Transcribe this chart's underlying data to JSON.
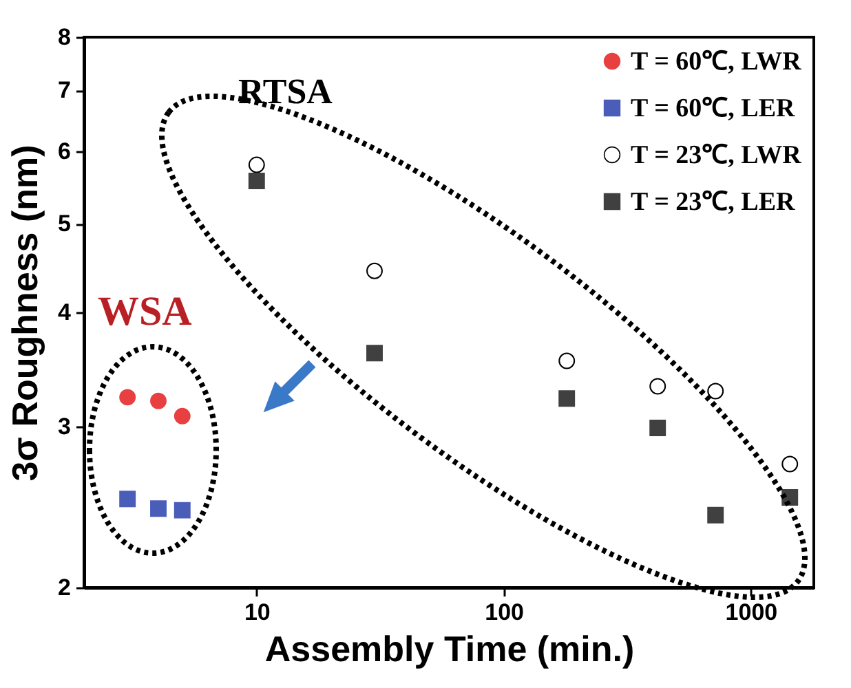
{
  "chart_data": {
    "type": "scatter",
    "xlabel": "Assembly Time (min.)",
    "ylabel": "3σ Roughness (nm)",
    "log": "xy",
    "xlim": [
      2,
      1800
    ],
    "xticks": [
      10,
      100,
      1000
    ],
    "ylim": [
      2,
      8
    ],
    "yticks": [
      2,
      3,
      4,
      5,
      6,
      7,
      8
    ],
    "grid": false,
    "legend": "top right",
    "series": [
      {
        "name": "T = 60℃, LWR",
        "color": "#e84040",
        "marker": "circle",
        "x": [
          3,
          4,
          5
        ],
        "values": [
          3.23,
          3.2,
          3.08
        ]
      },
      {
        "name": "T = 60℃, LER",
        "color": "#4a5db8",
        "marker": "square",
        "x": [
          3,
          4,
          5
        ],
        "values": [
          2.5,
          2.44,
          2.43
        ]
      },
      {
        "name": "T = 23℃, LWR",
        "color": "#ffffff",
        "marker": "circle",
        "x": [
          10,
          30,
          180,
          420,
          720,
          1440
        ],
        "values": [
          5.8,
          4.44,
          3.54,
          3.32,
          3.28,
          2.73
        ]
      },
      {
        "name": "T = 23℃, LER",
        "color": "#404040",
        "marker": "square",
        "x": [
          10,
          30,
          180,
          420,
          720,
          1440
        ],
        "values": [
          5.57,
          3.61,
          3.22,
          2.99,
          2.4,
          2.51
        ]
      }
    ],
    "annotations": [
      "RTSA",
      "WSA"
    ]
  }
}
